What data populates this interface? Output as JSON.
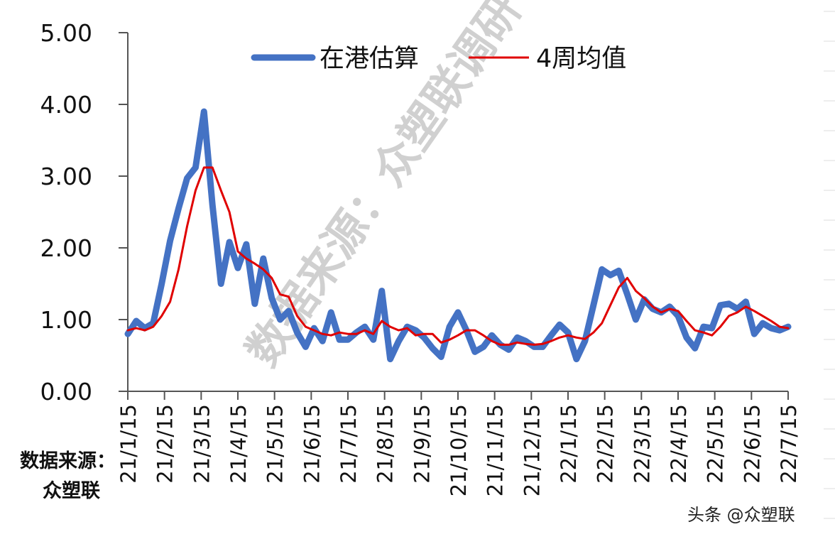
{
  "chart_data": {
    "type": "line",
    "title": "",
    "xlabel": "",
    "ylabel": "",
    "ylim": [
      0,
      5
    ],
    "yticks": [
      "0.00",
      "1.00",
      "2.00",
      "3.00",
      "4.00",
      "5.00"
    ],
    "xtick_labels": [
      "21/1/15",
      "21/2/15",
      "21/3/15",
      "21/4/15",
      "21/5/15",
      "21/6/15",
      "21/7/15",
      "21/8/15",
      "21/9/15",
      "21/10/15",
      "21/11/15",
      "21/12/15",
      "22/1/15",
      "22/2/15",
      "22/3/15",
      "22/4/15",
      "22/5/15",
      "22/6/15",
      "22/7/15"
    ],
    "legend_position": "top",
    "grid": false,
    "series": [
      {
        "name": "在港估算",
        "color": "#4472C4",
        "width": 9,
        "values": [
          0.8,
          0.98,
          0.88,
          0.95,
          1.5,
          2.1,
          2.55,
          2.97,
          3.12,
          3.9,
          2.6,
          1.5,
          2.08,
          1.72,
          2.05,
          1.22,
          1.85,
          1.3,
          1.0,
          1.12,
          0.82,
          0.62,
          0.88,
          0.7,
          1.1,
          0.72,
          0.72,
          0.82,
          0.9,
          0.72,
          1.4,
          0.45,
          0.7,
          0.9,
          0.85,
          0.75,
          0.6,
          0.48,
          0.9,
          1.1,
          0.85,
          0.55,
          0.62,
          0.78,
          0.65,
          0.58,
          0.75,
          0.7,
          0.62,
          0.62,
          0.78,
          0.93,
          0.82,
          0.45,
          0.7,
          1.2,
          1.7,
          1.62,
          1.68,
          1.35,
          1.0,
          1.28,
          1.15,
          1.1,
          1.18,
          1.05,
          0.75,
          0.6,
          0.9,
          0.88,
          1.2,
          1.22,
          1.15,
          1.25,
          0.8,
          0.95,
          0.88,
          0.85,
          0.9
        ]
      },
      {
        "name": "4周均值",
        "color": "#E00000",
        "width": 3,
        "values": [
          0.85,
          0.88,
          0.85,
          0.9,
          1.05,
          1.25,
          1.7,
          2.3,
          2.8,
          3.12,
          3.12,
          2.8,
          2.5,
          1.95,
          1.85,
          1.78,
          1.7,
          1.58,
          1.35,
          1.32,
          1.05,
          0.9,
          0.85,
          0.8,
          0.78,
          0.82,
          0.8,
          0.8,
          0.85,
          0.8,
          0.98,
          0.9,
          0.85,
          0.88,
          0.78,
          0.8,
          0.8,
          0.68,
          0.72,
          0.78,
          0.85,
          0.85,
          0.78,
          0.7,
          0.65,
          0.65,
          0.68,
          0.66,
          0.65,
          0.66,
          0.7,
          0.75,
          0.78,
          0.75,
          0.73,
          0.82,
          0.95,
          1.2,
          1.45,
          1.58,
          1.4,
          1.3,
          1.18,
          1.1,
          1.15,
          1.12,
          0.98,
          0.85,
          0.82,
          0.78,
          0.9,
          1.05,
          1.1,
          1.18,
          1.12,
          1.05,
          0.98,
          0.9,
          0.88
        ]
      }
    ],
    "annotations": {
      "watermark": "数据来源：众塑联调研",
      "source": [
        "数据来源：",
        "众塑联"
      ],
      "badge": "头条 @众塑联"
    }
  },
  "legend": {
    "items": [
      {
        "label": "在港估算",
        "color": "#4472C4"
      },
      {
        "label": "4周均值",
        "color": "#E00000"
      }
    ]
  },
  "source_note": {
    "line1": "数据来源：",
    "line2": "众塑联"
  },
  "watermark": "数据来源：众塑联调研",
  "badge": "头条 @众塑联"
}
